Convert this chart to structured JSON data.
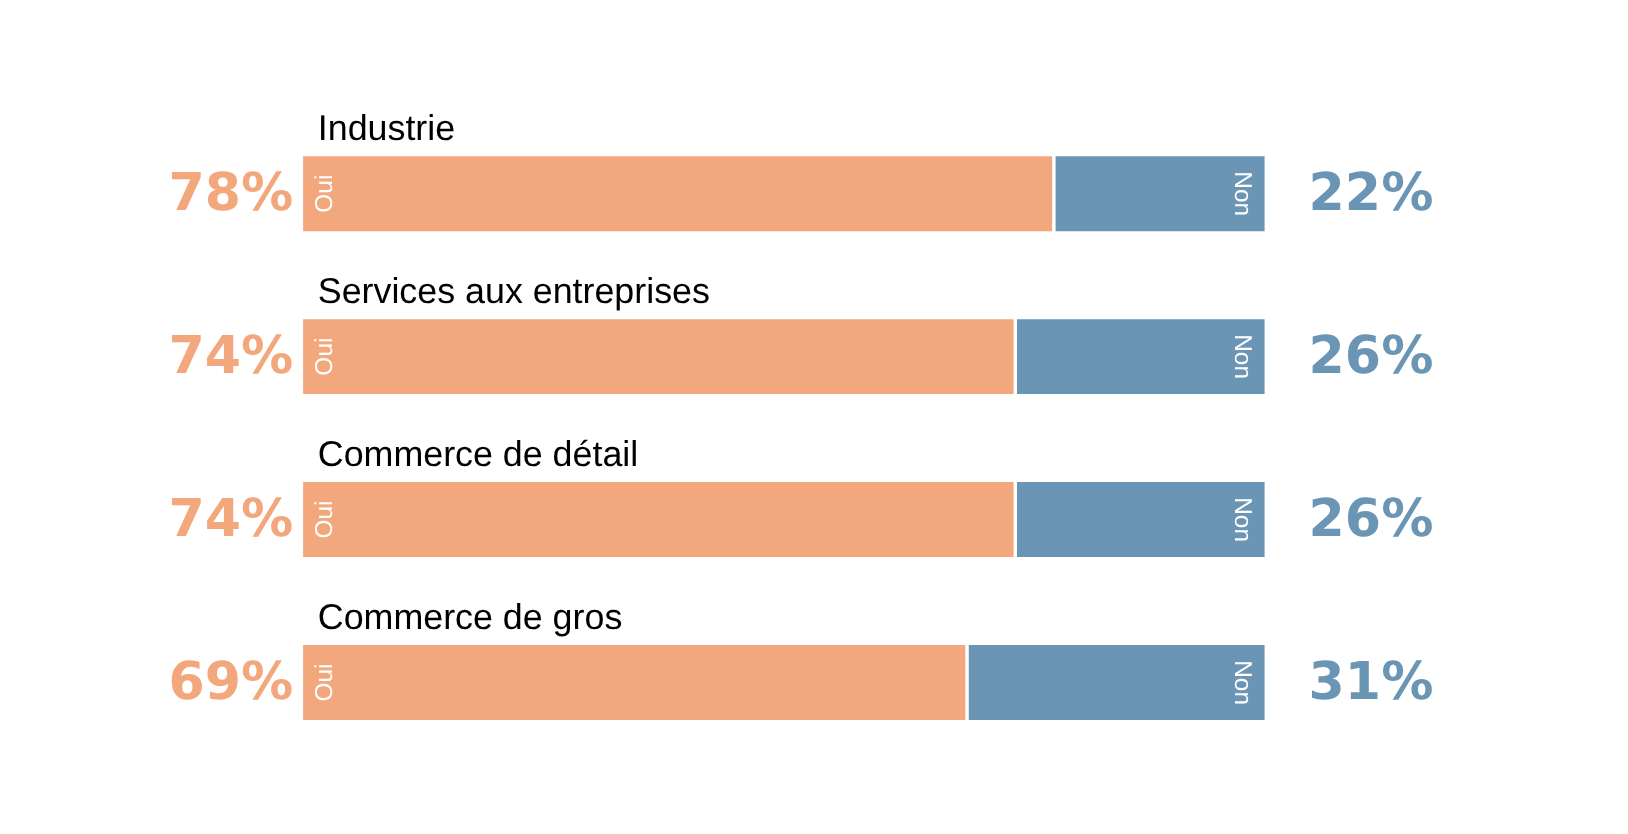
{
  "chart_data": {
    "type": "bar",
    "orientation": "horizontal",
    "stacked": true,
    "tick_labels": false,
    "xlim": [
      0,
      100
    ],
    "categories": [
      "Industrie",
      "Services aux entreprises",
      "Commerce de détail",
      "Commerce de gros"
    ],
    "series": [
      {
        "name": "Oui",
        "color": "#f2a77c",
        "values": [
          78,
          74,
          74,
          69
        ],
        "value_labels": [
          "78%",
          "74%",
          "74%",
          "69%"
        ]
      },
      {
        "name": "Non",
        "color": "#6a95b4",
        "values": [
          22,
          26,
          26,
          31
        ],
        "value_labels": [
          "22%",
          "26%",
          "26%",
          "31%"
        ]
      }
    ]
  }
}
